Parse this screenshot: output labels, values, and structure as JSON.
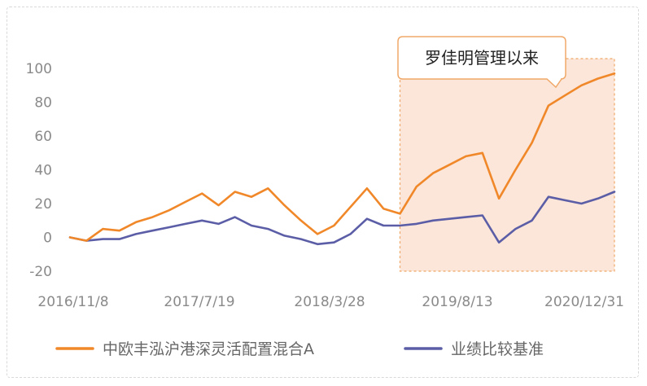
{
  "chart_data": {
    "type": "line",
    "x_ticks": [
      "2016/11/8",
      "2017/7/19",
      "2018/3/28",
      "2019/8/13",
      "2020/12/31"
    ],
    "yticks": [
      100,
      80,
      60,
      40,
      20,
      0,
      -20
    ],
    "ylim": [
      -20,
      100
    ],
    "grid": false,
    "legend_position": "bottom",
    "annotation": {
      "label": "罗佳明管理以来",
      "start_index": 20,
      "end_index": 33,
      "highlight_color": "#fbe6d9",
      "border_color": "#f0a868"
    },
    "series": [
      {
        "name": "中欧丰泓沪港深灵活配置混合A",
        "color": "#f0882a",
        "values": [
          0,
          -2,
          5,
          4,
          9,
          12,
          16,
          21,
          26,
          19,
          27,
          24,
          29,
          19,
          10,
          2,
          7,
          18,
          29,
          17,
          14,
          30,
          38,
          43,
          48,
          50,
          23,
          40,
          56,
          78,
          84,
          90,
          94,
          97
        ]
      },
      {
        "name": "业绩比较基准",
        "color": "#5b5ea6",
        "values": [
          0,
          -2,
          -1,
          -1,
          2,
          4,
          6,
          8,
          10,
          8,
          12,
          7,
          5,
          1,
          -1,
          -4,
          -3,
          2,
          11,
          7,
          7,
          8,
          10,
          11,
          12,
          13,
          -3,
          5,
          10,
          24,
          22,
          20,
          23,
          27
        ]
      }
    ]
  }
}
